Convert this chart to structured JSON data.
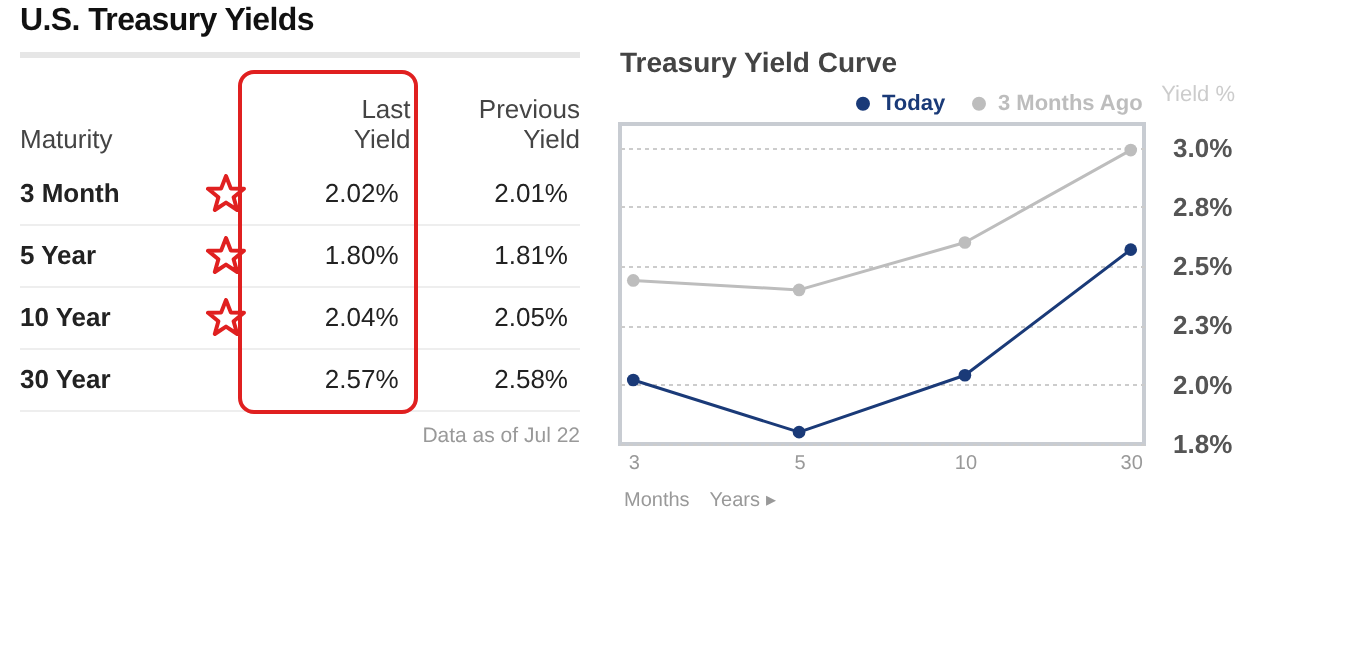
{
  "chart_data": [
    {
      "type": "other",
      "title": "U.S. Treasury Yields",
      "categories": [
        "3 Month",
        "5 Year",
        "10 Year",
        "30 Year"
      ],
      "series": [
        {
          "name": "Last Yield",
          "values": [
            2.02,
            1.8,
            2.04,
            2.57
          ],
          "value_labels": [
            "2.02%",
            "1.80%",
            "2.04%",
            "2.57%"
          ]
        },
        {
          "name": "Previous Yield",
          "values": [
            2.01,
            1.81,
            2.05,
            2.58
          ],
          "value_labels": [
            "2.01%",
            "1.81%",
            "2.05%",
            "2.58%"
          ]
        }
      ],
      "annotations": [
        "Maturity",
        "Data as of Jul 22"
      ]
    },
    {
      "type": "line",
      "title": "Treasury Yield Curve",
      "ylabel": "Yield %",
      "categories": [
        "3",
        "5",
        "10",
        "30"
      ],
      "series": [
        {
          "name": "Today",
          "color": "#1a3a78",
          "values": [
            2.02,
            1.8,
            2.04,
            2.57
          ]
        },
        {
          "name": "3 Months Ago",
          "color": "#bdbdbd",
          "values": [
            2.44,
            2.4,
            2.6,
            2.99
          ]
        }
      ],
      "ylim": [
        1.75,
        3.1
      ],
      "yticks": [
        {
          "value": 1.75,
          "label": "1.8%"
        },
        {
          "value": 2.0,
          "label": "2.0%"
        },
        {
          "value": 2.25,
          "label": "2.3%"
        },
        {
          "value": 2.5,
          "label": "2.5%"
        },
        {
          "value": 2.75,
          "label": "2.8%"
        },
        {
          "value": 3.0,
          "label": "3.0%"
        }
      ],
      "grid": "y",
      "marker": "circle",
      "legend": "top right",
      "annotations": [
        "Months",
        "Years ▸"
      ]
    }
  ]
}
